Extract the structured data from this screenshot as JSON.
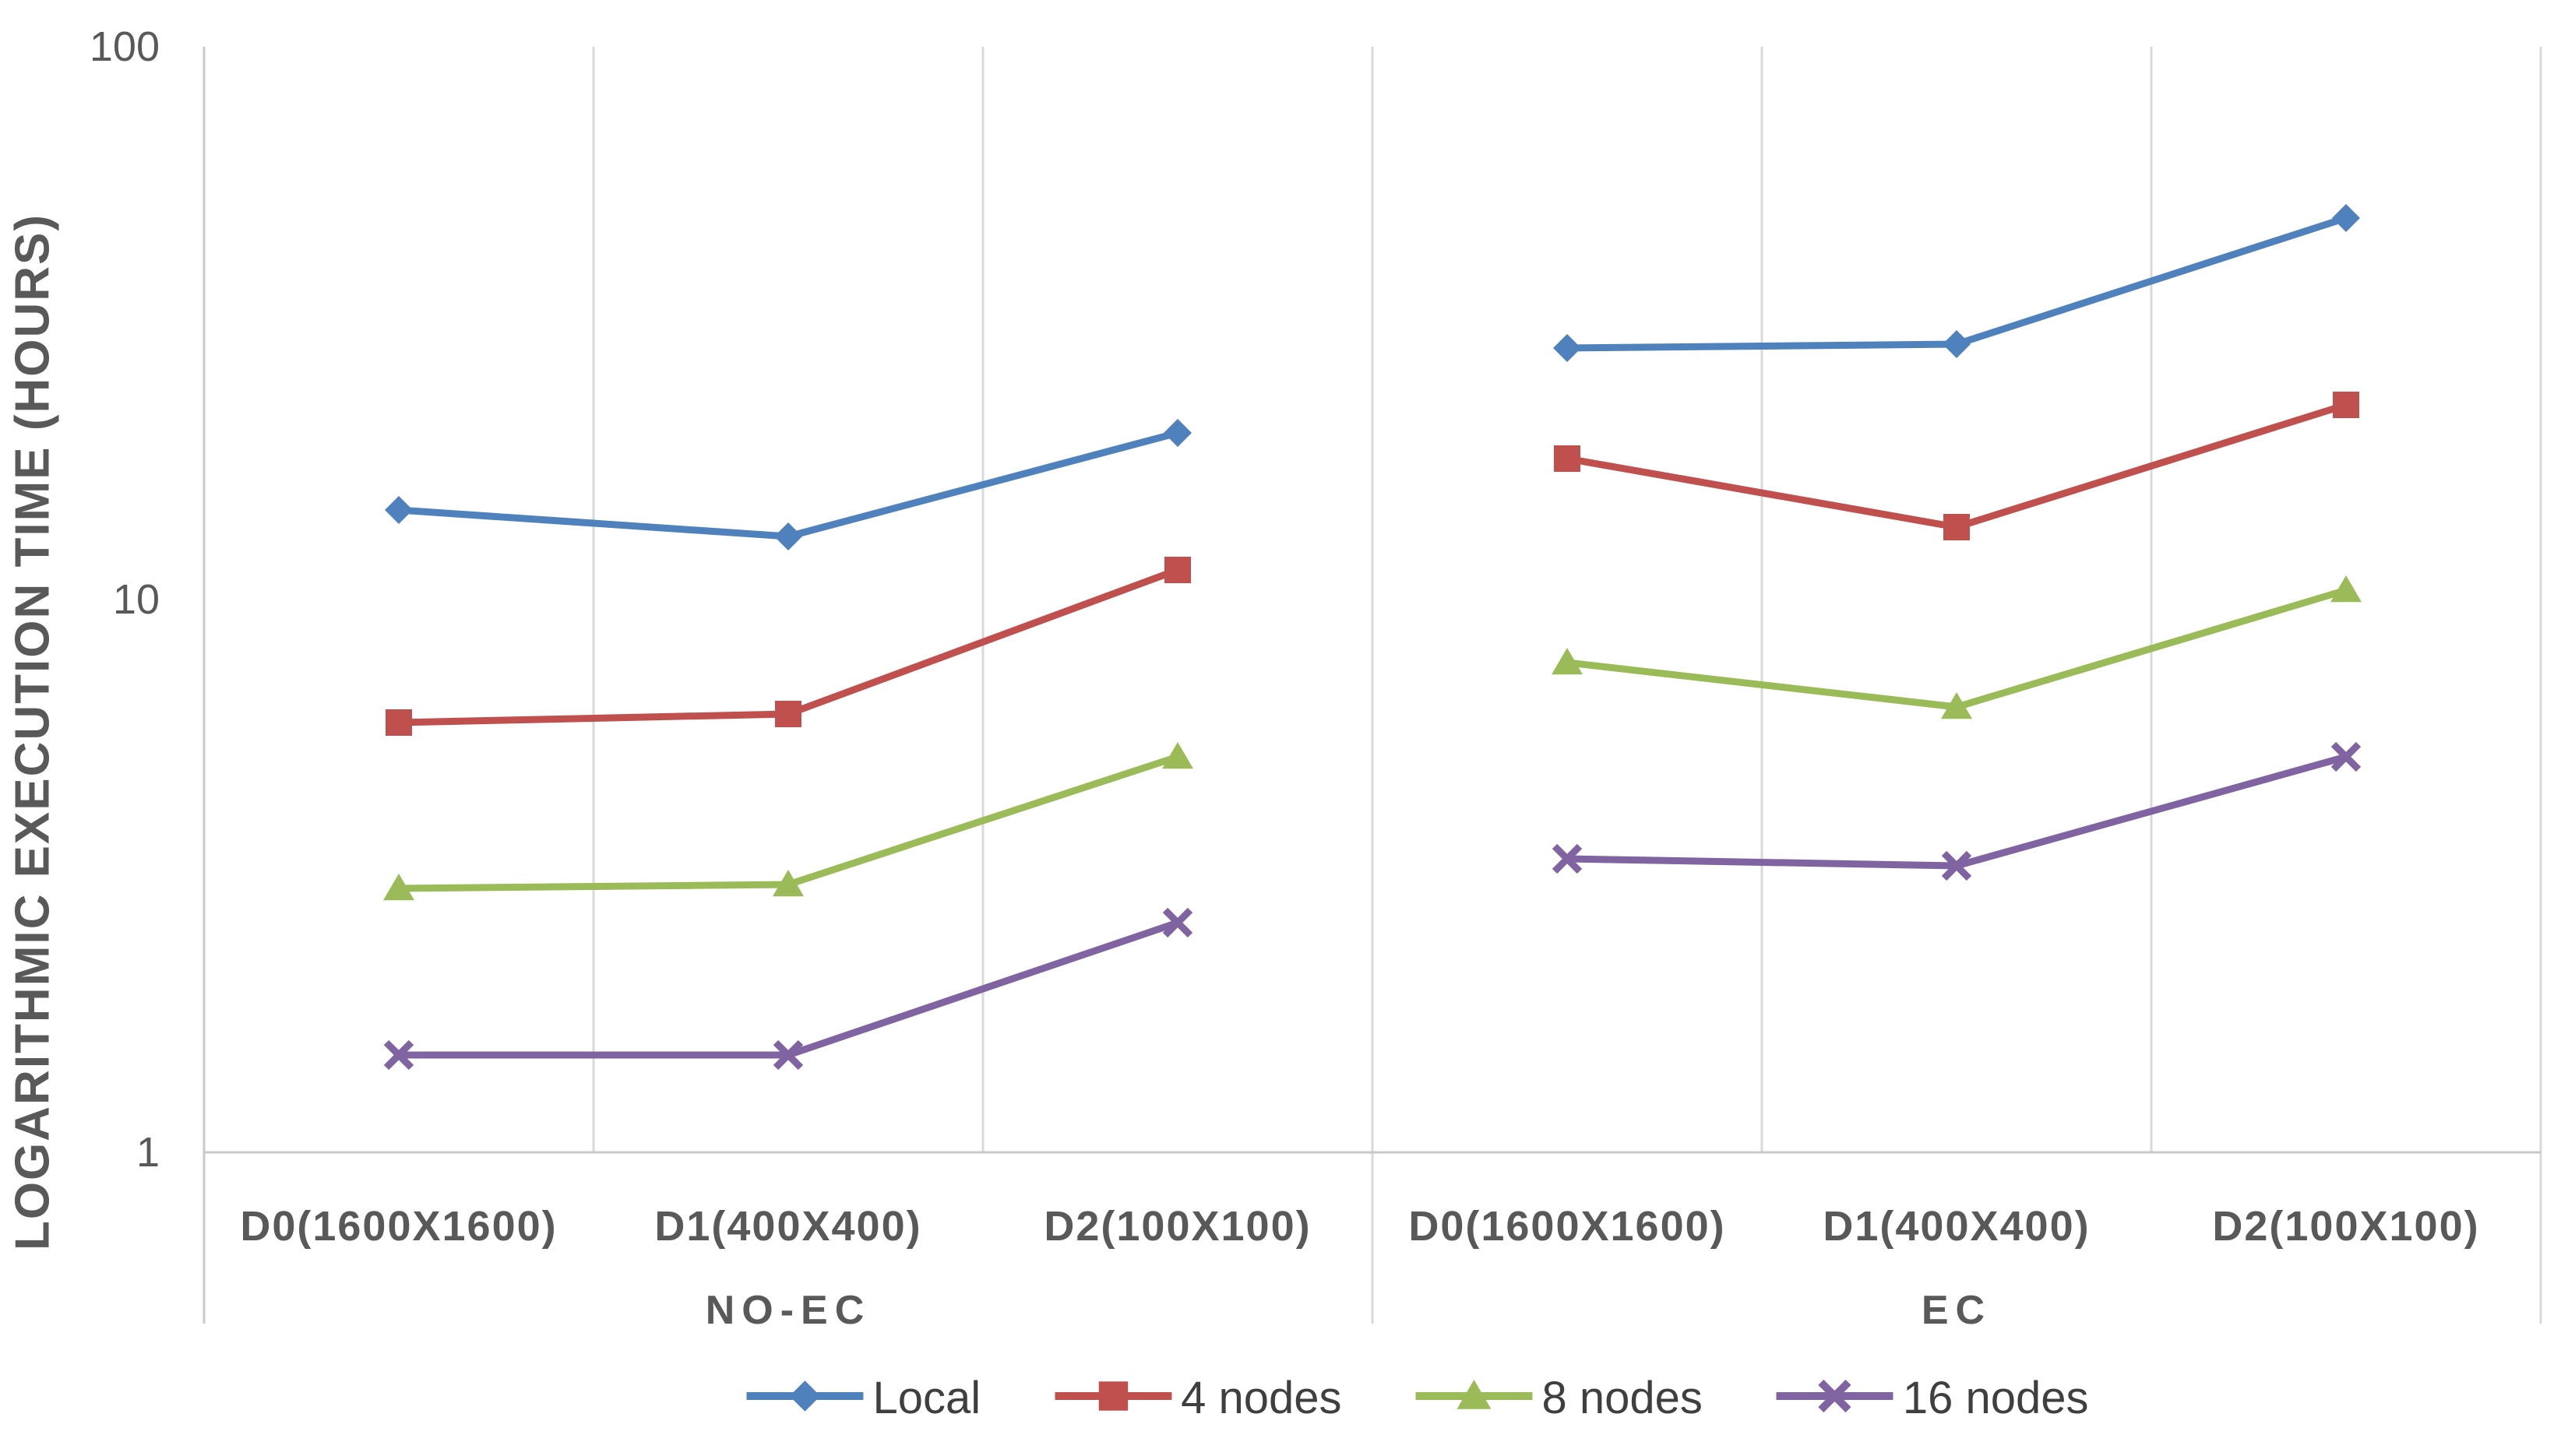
{
  "chart_data": {
    "type": "line",
    "title": "",
    "y_axis": {
      "label": "LOGARITHMIC EXECUTION TIME (HOURS)",
      "scale": "log",
      "range": [
        1,
        100
      ],
      "ticks": [
        1,
        10,
        100
      ]
    },
    "x_axis": {
      "categories": [
        "D0(1600X1600)",
        "D1(400X400)",
        "D2(100X100)"
      ],
      "group_labels": [
        "NO-EC",
        "EC"
      ]
    },
    "grid": {
      "vertical": true,
      "horizontal": false
    },
    "legend_position": "bottom",
    "series": [
      {
        "name": "Local",
        "color": "#4F81BD",
        "marker": "diamond",
        "values": {
          "NO-EC": [
            14.5,
            13,
            20
          ],
          "EC": [
            28.5,
            29,
            49
          ]
        }
      },
      {
        "name": "4 nodes",
        "color": "#C0504D",
        "marker": "square",
        "values": {
          "NO-EC": [
            6,
            6.2,
            11.3
          ],
          "EC": [
            18,
            13.5,
            22.5
          ]
        }
      },
      {
        "name": "8 nodes",
        "color": "#9BBB59",
        "marker": "triangle",
        "values": {
          "NO-EC": [
            3,
            3.05,
            5.2
          ],
          "EC": [
            7.7,
            6.4,
            10.4
          ]
        }
      },
      {
        "name": "16 nodes",
        "color": "#8064A2",
        "marker": "x",
        "values": {
          "NO-EC": [
            1.5,
            1.5,
            2.6
          ],
          "EC": [
            3.4,
            3.3,
            5.2
          ]
        }
      }
    ],
    "colors": {
      "grid": "#D9D9D9",
      "axis": "#C9C9C9",
      "tick_text": "#595959",
      "legend_text": "#3F3F3F"
    }
  }
}
